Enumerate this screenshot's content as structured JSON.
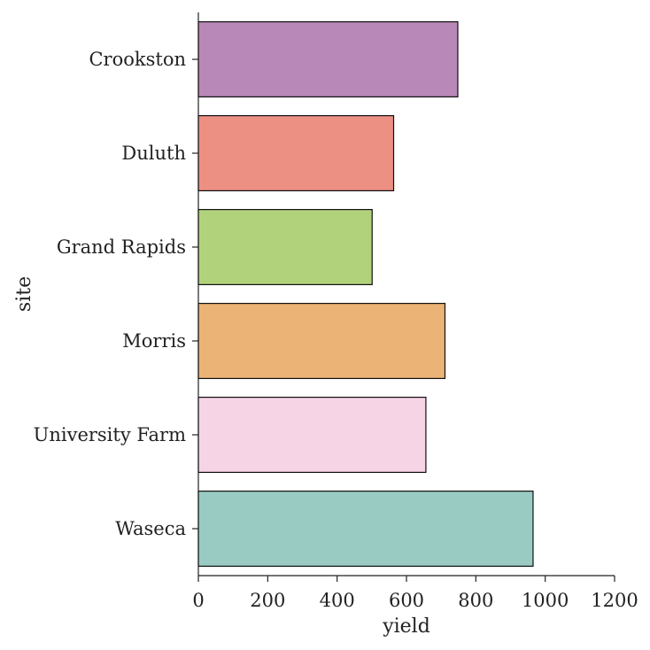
{
  "chart_data": {
    "type": "bar",
    "orientation": "horizontal",
    "title": "",
    "xlabel": "yield",
    "ylabel": "site",
    "categories": [
      "Crookston",
      "Duluth",
      "Grand Rapids",
      "Morris",
      "University Farm",
      "Waseca"
    ],
    "values": [
      748,
      563,
      501,
      711,
      656,
      965
    ],
    "colors": [
      "#b888b8",
      "#ec9083",
      "#b1d27b",
      "#ebb376",
      "#f6d4e6",
      "#99cbc3"
    ],
    "xlim": [
      0,
      1200
    ],
    "xticks": [
      0,
      200,
      400,
      600,
      800,
      1000,
      1200
    ],
    "xtick_labels": [
      "0",
      "200",
      "400",
      "600",
      "800",
      "1000",
      "1200"
    ],
    "grid": false,
    "legend": "none"
  }
}
